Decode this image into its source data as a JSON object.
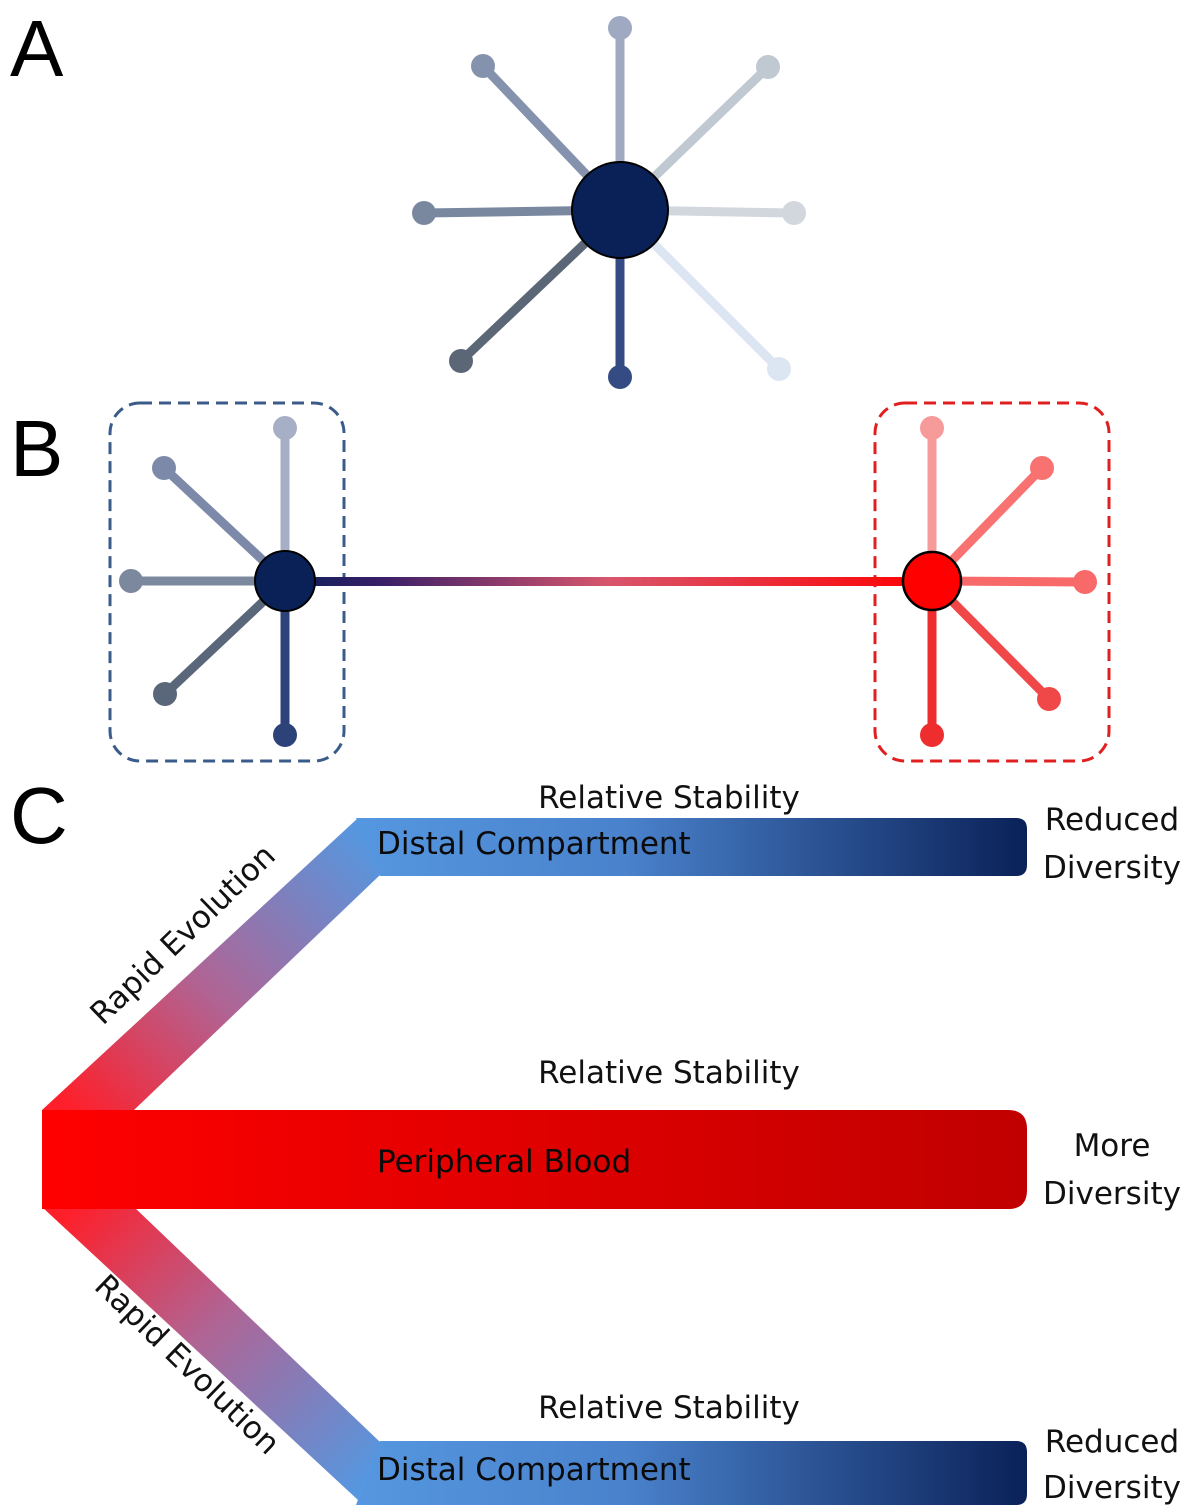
{
  "panels": {
    "a": {
      "letter": "A"
    },
    "b": {
      "letter": "B"
    },
    "c": {
      "letter": "C"
    }
  },
  "panel_a": {
    "hub_color": "#0a2158",
    "spokes": [
      {
        "direction": "N",
        "color": "#9fa9c1"
      },
      {
        "direction": "NE",
        "color": "#c0c8d2"
      },
      {
        "direction": "E",
        "color": "#d2d7de"
      },
      {
        "direction": "SE",
        "color": "#dce5f2"
      },
      {
        "direction": "S",
        "color": "#344b83"
      },
      {
        "direction": "SW",
        "color": "#5b6677"
      },
      {
        "direction": "W",
        "color": "#7a889f"
      },
      {
        "direction": "NW",
        "color": "#8592ae"
      }
    ]
  },
  "panel_b": {
    "left_cluster": {
      "hub_color": "#0a2158",
      "box_color": "#3b5c8a",
      "spokes": [
        {
          "direction": "N",
          "color": "#a7afc6"
        },
        {
          "direction": "NW",
          "color": "#7d89a8"
        },
        {
          "direction": "W",
          "color": "#7c889d"
        },
        {
          "direction": "SW",
          "color": "#5a6679"
        },
        {
          "direction": "S",
          "color": "#2c4279"
        }
      ]
    },
    "right_cluster": {
      "hub_color": "#ff0000",
      "box_color": "#e02020",
      "spokes": [
        {
          "direction": "N",
          "color": "#f79a9a"
        },
        {
          "direction": "NE",
          "color": "#f87272"
        },
        {
          "direction": "E",
          "color": "#f86a6a"
        },
        {
          "direction": "SE",
          "color": "#f04848"
        },
        {
          "direction": "S",
          "color": "#ee2e2e"
        }
      ]
    }
  },
  "panel_c": {
    "top_branch": {
      "evolution_label": "Rapid Evolution",
      "stability_label": "Relative Stability",
      "bar_label": "Distal Compartment",
      "outcome_line1": "Reduced",
      "outcome_line2": "Diversity"
    },
    "middle_branch": {
      "stability_label": "Relative Stability",
      "bar_label": "Peripheral Blood",
      "outcome_line1": "More",
      "outcome_line2": "Diversity"
    },
    "bottom_branch": {
      "evolution_label": "Rapid Evolution",
      "stability_label": "Relative Stability",
      "bar_label": "Distal Compartment",
      "outcome_line1": "Reduced",
      "outcome_line2": "Diversity"
    },
    "colors": {
      "red": "#ff0000",
      "dark_red": "#c00000",
      "light_blue": "#5597e0",
      "navy": "#0a2158"
    }
  }
}
